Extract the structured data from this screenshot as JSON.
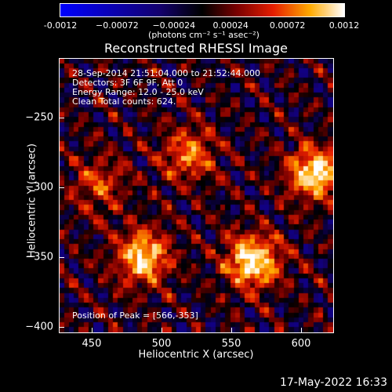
{
  "colorbar": {
    "ticks": [
      "-0.0012",
      "−0.00072",
      "−0.00024",
      "0.00024",
      "0.00072",
      "0.0012"
    ],
    "units": "(photons cm⁻² s⁻¹ asec⁻²)",
    "colors": [
      "#0000ff",
      "#000000",
      "#ffffff"
    ]
  },
  "chart_data": {
    "type": "heatmap",
    "title": "Reconstructed RHESSI Image",
    "xlabel": "Heliocentric X (arcsec)",
    "ylabel": "Heliocentric Y (arcsec)",
    "xlim": [
      427,
      623
    ],
    "ylim": [
      -404,
      -208
    ],
    "xticks": [
      450,
      500,
      550,
      600
    ],
    "yticks": [
      -250,
      -300,
      -350,
      -400
    ],
    "sources": [
      {
        "x": 566,
        "y": -353,
        "strength": 1.0
      },
      {
        "x": 487,
        "y": -350,
        "strength": 0.9
      },
      {
        "x": 610,
        "y": -290,
        "strength": 0.95
      },
      {
        "x": 520,
        "y": -277,
        "strength": 0.65
      },
      {
        "x": 455,
        "y": -298,
        "strength": 0.5
      }
    ],
    "annotations": {
      "time_range": "28-Sep-2014 21:51:04.000 to 21:52:44.000",
      "detectors": "Detectors: 3F 6F 9F, Att 0",
      "energy": "Energy Range: 12.0 - 25.0 keV",
      "clean": "Clean     Total counts: 624.",
      "peak": "Position of Peak = [566,-353]"
    }
  },
  "timestamp": "17-May-2022 16:33"
}
